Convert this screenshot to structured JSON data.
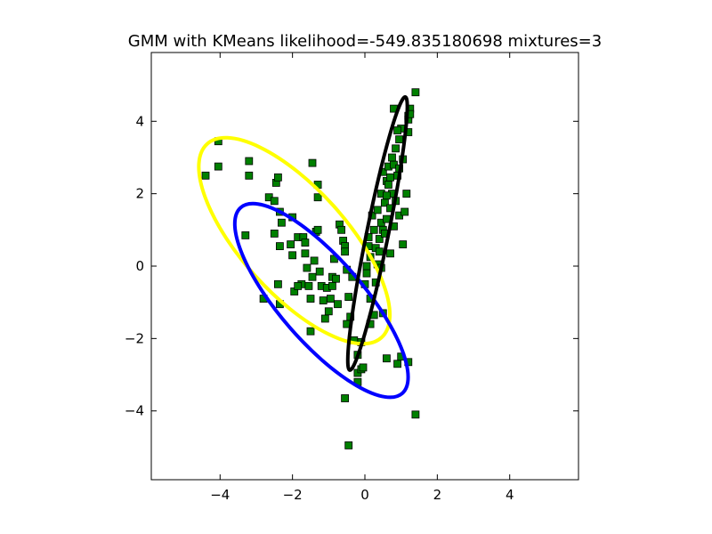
{
  "chart_data": {
    "type": "scatter",
    "title": "GMM with KMeans likelihood=-549.835180698 mixtures=3",
    "xlabel": "",
    "ylabel": "",
    "xlim": [
      -5.9,
      5.9
    ],
    "ylim": [
      -5.9,
      5.9
    ],
    "xticks": [
      -4,
      -2,
      0,
      2,
      4
    ],
    "yticks": [
      -4,
      -2,
      0,
      2,
      4
    ],
    "xtick_labels": [
      "−4",
      "−2",
      "0",
      "2",
      "4"
    ],
    "ytick_labels": [
      "−4",
      "−2",
      "0",
      "2",
      "4"
    ],
    "grid": false,
    "marker_color": "#008000",
    "marker_edge_color": "#000000",
    "points": [
      [
        -4.4,
        2.5
      ],
      [
        -4.05,
        3.45
      ],
      [
        -4.05,
        2.75
      ],
      [
        -3.2,
        2.9
      ],
      [
        -3.2,
        2.5
      ],
      [
        -3.3,
        0.85
      ],
      [
        -2.8,
        -0.9
      ],
      [
        -2.65,
        1.9
      ],
      [
        -2.5,
        1.8
      ],
      [
        -2.45,
        2.3
      ],
      [
        -2.4,
        2.45
      ],
      [
        -2.35,
        1.5
      ],
      [
        -2.3,
        1.2
      ],
      [
        -2.5,
        0.9
      ],
      [
        -2.35,
        0.55
      ],
      [
        -2.4,
        -0.5
      ],
      [
        -2.35,
        -1.05
      ],
      [
        -2.05,
        0.6
      ],
      [
        -2.0,
        1.35
      ],
      [
        -2.0,
        0.3
      ],
      [
        -1.95,
        -0.7
      ],
      [
        -1.85,
        0.8
      ],
      [
        -1.75,
        -0.5
      ],
      [
        -1.7,
        0.8
      ],
      [
        -1.65,
        0.65
      ],
      [
        -1.6,
        -0.05
      ],
      [
        -1.55,
        -0.55
      ],
      [
        -1.5,
        -0.9
      ],
      [
        -1.5,
        -1.8
      ],
      [
        -1.45,
        2.85
      ],
      [
        -1.4,
        0.15
      ],
      [
        -1.35,
        0.95
      ],
      [
        -1.3,
        2.25
      ],
      [
        -1.3,
        1.9
      ],
      [
        -1.25,
        -0.15
      ],
      [
        -1.2,
        -0.55
      ],
      [
        -1.15,
        -0.95
      ],
      [
        -1.1,
        -1.45
      ],
      [
        -1.05,
        -0.6
      ],
      [
        -1.0,
        -1.25
      ],
      [
        -0.95,
        -0.9
      ],
      [
        -0.9,
        -0.3
      ],
      [
        -0.9,
        -0.55
      ],
      [
        -0.85,
        0.2
      ],
      [
        -0.8,
        -0.35
      ],
      [
        -0.75,
        -1.05
      ],
      [
        -0.7,
        1.15
      ],
      [
        -0.65,
        1.0
      ],
      [
        -0.6,
        0.7
      ],
      [
        -0.55,
        0.55
      ],
      [
        -0.5,
        -0.1
      ],
      [
        -0.5,
        -1.6
      ],
      [
        -0.45,
        -0.85
      ],
      [
        -0.4,
        -1.4
      ],
      [
        -0.35,
        -0.3
      ],
      [
        -1.3,
        1.0
      ],
      [
        -1.45,
        -0.3
      ],
      [
        -1.65,
        0.35
      ],
      [
        -1.85,
        -0.55
      ],
      [
        -0.55,
        0.4
      ],
      [
        -0.3,
        -2.05
      ],
      [
        -0.2,
        -2.45
      ],
      [
        -0.2,
        -2.95
      ],
      [
        -0.1,
        -2.85
      ],
      [
        -0.05,
        -2.8
      ],
      [
        -0.1,
        -2.1
      ],
      [
        -0.2,
        -3.2
      ],
      [
        -0.55,
        -3.65
      ],
      [
        -0.45,
        -4.95
      ],
      [
        0.0,
        -0.5
      ],
      [
        0.05,
        -0.2
      ],
      [
        0.05,
        0.0
      ],
      [
        0.1,
        0.55
      ],
      [
        0.1,
        0.8
      ],
      [
        0.15,
        -0.9
      ],
      [
        0.15,
        0.25
      ],
      [
        0.2,
        1.4
      ],
      [
        0.25,
        1.0
      ],
      [
        0.3,
        0.5
      ],
      [
        0.35,
        0.05
      ],
      [
        0.35,
        1.55
      ],
      [
        0.4,
        0.75
      ],
      [
        0.45,
        1.2
      ],
      [
        0.5,
        1.0
      ],
      [
        0.5,
        2.6
      ],
      [
        0.55,
        1.75
      ],
      [
        0.6,
        2.35
      ],
      [
        0.6,
        1.3
      ],
      [
        0.65,
        2.25
      ],
      [
        0.65,
        2.75
      ],
      [
        0.7,
        0.35
      ],
      [
        0.7,
        1.6
      ],
      [
        0.75,
        3.0
      ],
      [
        0.75,
        2.0
      ],
      [
        0.8,
        4.35
      ],
      [
        0.8,
        1.1
      ],
      [
        0.85,
        3.25
      ],
      [
        0.85,
        1.8
      ],
      [
        0.9,
        2.5
      ],
      [
        0.95,
        3.5
      ],
      [
        0.95,
        1.4
      ],
      [
        1.0,
        3.8
      ],
      [
        1.05,
        0.6
      ],
      [
        1.05,
        2.95
      ],
      [
        1.1,
        1.5
      ],
      [
        1.15,
        2.0
      ],
      [
        1.2,
        4.15
      ],
      [
        1.2,
        4.05
      ],
      [
        1.2,
        3.7
      ],
      [
        1.25,
        4.35
      ],
      [
        1.25,
        4.2
      ],
      [
        1.4,
        4.8
      ],
      [
        0.9,
        3.75
      ],
      [
        0.8,
        2.8
      ],
      [
        0.95,
        2.7
      ],
      [
        0.6,
        -2.55
      ],
      [
        0.9,
        -2.7
      ],
      [
        1.0,
        -2.5
      ],
      [
        1.2,
        -2.65
      ],
      [
        1.4,
        -4.1
      ],
      [
        0.45,
        -0.05
      ],
      [
        0.3,
        -0.45
      ],
      [
        0.25,
        -1.35
      ],
      [
        0.5,
        -1.3
      ],
      [
        0.15,
        -1.6
      ],
      [
        0.55,
        0.9
      ],
      [
        0.45,
        2.0
      ],
      [
        0.4,
        0.4
      ],
      [
        0.6,
        1.95
      ],
      [
        0.7,
        2.45
      ]
    ],
    "ellipses": [
      {
        "color": "#ffff00",
        "cx": -1.95,
        "cy": 0.7,
        "rx": 3.6,
        "ry": 1.45,
        "angle": -48
      },
      {
        "color": "#0000ff",
        "cx": -1.2,
        "cy": -0.95,
        "rx": 3.4,
        "ry": 1.15,
        "angle": -49
      },
      {
        "color": "#000000",
        "cx": 0.35,
        "cy": 0.9,
        "rx": 3.85,
        "ry": 0.3,
        "angle": 78.5
      }
    ]
  }
}
